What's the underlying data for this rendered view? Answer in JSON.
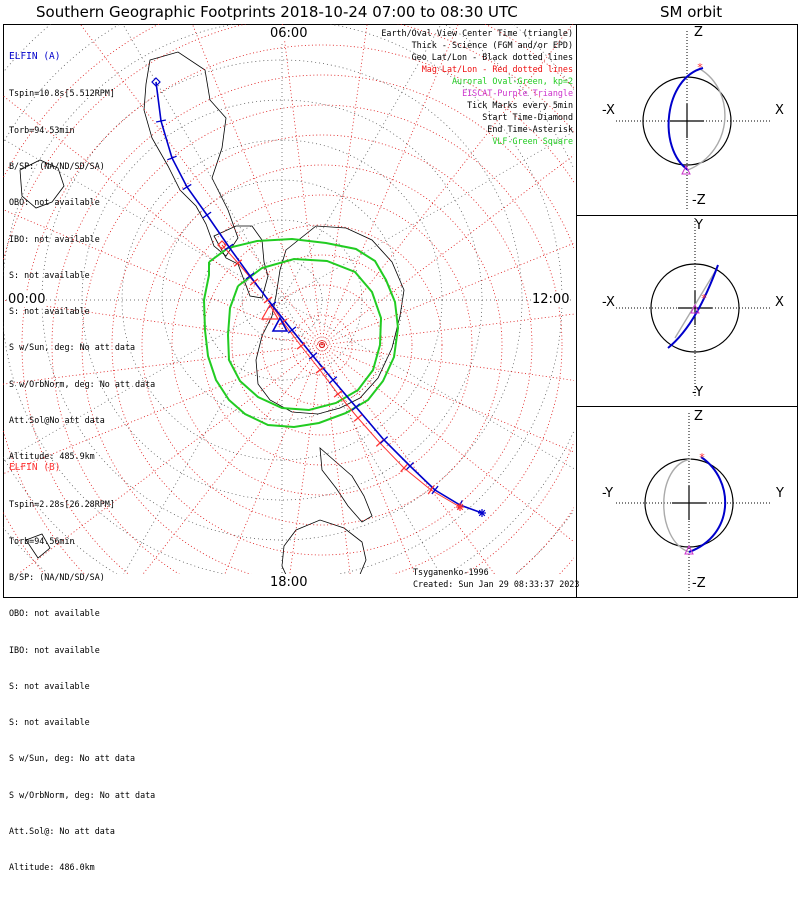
{
  "chart_title": "Southern Geographic Footprints 2018-10-24 07:00 to 08:30 UTC",
  "orbit_title": "SM orbit",
  "colors": {
    "elfin_a": "#0000cc",
    "elfin_b": "#ff3333",
    "geo_grid": "#444444",
    "mag_grid": "#dd1111",
    "auroral_oval": "#22cc22",
    "eiscat": "#cc33cc",
    "orbit_other": "#aaaaaa"
  },
  "mlt_labels": {
    "top": "06:00",
    "left": "00:00",
    "right": "12:00",
    "bottom": "18:00"
  },
  "legend": [
    {
      "text": "Earth/Oval View Center Time (triangle)",
      "color": "#000000"
    },
    {
      "text": "Thick - Science (FGM and/or EPD)",
      "color": "#000000"
    },
    {
      "text": "Geo Lat/Lon - Black dotted lines",
      "color": "#000000"
    },
    {
      "text": "Mag Lat/Lon - Red dotted lines",
      "color": "#ee1111"
    },
    {
      "text": "Auroral Oval-Green, kp=2",
      "color": "#22cc22"
    },
    {
      "text": "EISCAT-Purple Triangle",
      "color": "#cc33cc"
    },
    {
      "text": "Tick Marks every 5min",
      "color": "#000000"
    },
    {
      "text": "Start Time-Diamond",
      "color": "#000000"
    },
    {
      "text": "End Time-Asterisk",
      "color": "#000000"
    },
    {
      "text": "VLF-Green Square",
      "color": "#22cc22"
    }
  ],
  "elfin_a": {
    "name": "ELFIN (A)",
    "lines": [
      "Tspin=10.8s[5.512RPM]",
      "Torb=94.53min",
      "B/SP: (NA/ND/SD/SA)",
      "OBO: not available",
      "IBO: not available",
      "S: not available",
      "S: not available",
      "S w/Sun, deg: No att data",
      "S w/OrbNorm, deg: No att data",
      "Att.Sol@No att data",
      "Altitude: 485.9km"
    ]
  },
  "elfin_b": {
    "name": "ELFIN (B)",
    "lines": [
      "Tspin=2.28s[26.28RPM]",
      "Torb=94.56min",
      "B/SP: (NA/ND/SD/SA)",
      "OBO: not available",
      "IBO: not available",
      "S: not available",
      "S: not available",
      "S w/Sun, deg: No att data",
      "S w/OrbNorm, deg: No att data",
      "Att.Sol@: No att data",
      "Altitude: 486.0km"
    ]
  },
  "credits": {
    "author": "Tsyganenko-1996",
    "created": "Created: Sun Jan 29 08:33:37 2023"
  },
  "orbit_panels": [
    {
      "top": "Z",
      "bottom": "-Z",
      "left": "-X",
      "right": "X"
    },
    {
      "top": "Y",
      "bottom": "-Y",
      "left": "-X",
      "right": "X"
    },
    {
      "top": "Z",
      "bottom": "-Z",
      "left": "-Y",
      "right": "Y"
    }
  ],
  "chart_data": {
    "type": "scatter",
    "projection": "south polar stereographic footprint map",
    "grid": true,
    "ellipse": {
      "outer_oval": [
        [
          209,
          262
        ],
        [
          228,
          248
        ],
        [
          257,
          241
        ],
        [
          292,
          239
        ],
        [
          326,
          243
        ],
        [
          356,
          249
        ],
        [
          375,
          261
        ],
        [
          386,
          280
        ],
        [
          395,
          302
        ],
        [
          398,
          328
        ],
        [
          394,
          357
        ],
        [
          383,
          381
        ],
        [
          368,
          400
        ],
        [
          346,
          413
        ],
        [
          319,
          423
        ],
        [
          294,
          427
        ],
        [
          268,
          425
        ],
        [
          245,
          414
        ],
        [
          229,
          400
        ],
        [
          216,
          380
        ],
        [
          208,
          356
        ],
        [
          205,
          330
        ],
        [
          204,
          300
        ],
        [
          209,
          275
        ],
        [
          209,
          262
        ]
      ],
      "inner_oval": [
        [
          238,
          286
        ],
        [
          262,
          268
        ],
        [
          294,
          259
        ],
        [
          327,
          261
        ],
        [
          355,
          272
        ],
        [
          372,
          292
        ],
        [
          381,
          318
        ],
        [
          380,
          345
        ],
        [
          373,
          370
        ],
        [
          358,
          390
        ],
        [
          336,
          403
        ],
        [
          309,
          410
        ],
        [
          282,
          408
        ],
        [
          258,
          397
        ],
        [
          240,
          381
        ],
        [
          229,
          360
        ],
        [
          228,
          335
        ],
        [
          230,
          308
        ],
        [
          238,
          286
        ]
      ],
      "elfin_a_track": [
        [
          156,
          82
        ],
        [
          161,
          121
        ],
        [
          172,
          158
        ],
        [
          187,
          187
        ],
        [
          207,
          215
        ],
        [
          229,
          247
        ],
        [
          250,
          276
        ],
        [
          272,
          305
        ],
        [
          292,
          330
        ],
        [
          313,
          356
        ],
        [
          333,
          380
        ],
        [
          356,
          407
        ],
        [
          384,
          440
        ],
        [
          410,
          466
        ],
        [
          435,
          490
        ],
        [
          460,
          505
        ],
        [
          482,
          513
        ]
      ],
      "elfin_b_track": [
        [
          222,
          245
        ],
        [
          238,
          263
        ],
        [
          254,
          282
        ],
        [
          268,
          300
        ],
        [
          283,
          322
        ],
        [
          301,
          346
        ],
        [
          320,
          370
        ],
        [
          338,
          394
        ],
        [
          358,
          418
        ],
        [
          380,
          443
        ],
        [
          404,
          468
        ],
        [
          431,
          490
        ],
        [
          460,
          507
        ]
      ]
    },
    "series": [
      {
        "name": "ELFIN (A)",
        "color": "#0000cc",
        "start": "diamond",
        "end": "asterisk",
        "footprint_triangle": "center"
      },
      {
        "name": "ELFIN (B)",
        "color": "#ff3333",
        "start": "diamond",
        "end": "asterisk"
      }
    ]
  }
}
